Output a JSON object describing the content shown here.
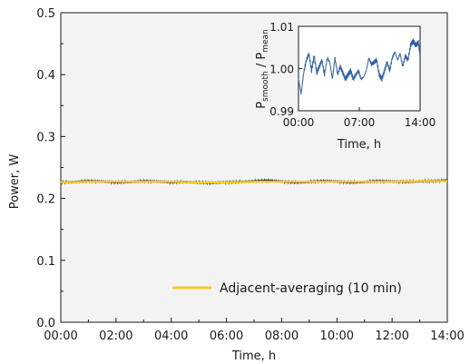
{
  "chart_data": [
    {
      "type": "line",
      "xlabel": "Time, h",
      "ylabel": "Power, W",
      "xlim": [
        0,
        14
      ],
      "ylim": [
        0,
        0.5
      ],
      "x_tick_labels": [
        "00:00",
        "02:00",
        "04:00",
        "06:00",
        "08:00",
        "10:00",
        "12:00",
        "14:00"
      ],
      "y_tick_labels": [
        "0.0",
        "0.1",
        "0.2",
        "0.3",
        "0.4",
        "0.5"
      ],
      "grid": false,
      "legend_placement": "bottom-right",
      "series": [
        {
          "name": "",
          "color": "#3b4a3a",
          "x": [
            0,
            0.5,
            1,
            1.5,
            2,
            2.5,
            3,
            3.5,
            4,
            4.5,
            5,
            5.5,
            6,
            6.5,
            7,
            7.5,
            8,
            8.5,
            9,
            9.5,
            10,
            10.5,
            11,
            11.5,
            12,
            12.5,
            13,
            13.5,
            14
          ],
          "values": [
            0.226,
            0.227,
            0.228,
            0.227,
            0.226,
            0.227,
            0.228,
            0.227,
            0.226,
            0.227,
            0.226,
            0.225,
            0.226,
            0.227,
            0.228,
            0.229,
            0.227,
            0.226,
            0.227,
            0.228,
            0.227,
            0.226,
            0.227,
            0.228,
            0.227,
            0.227,
            0.228,
            0.228,
            0.229
          ]
        },
        {
          "name": "Adjacent-averaging (10 min)",
          "color": "#f5cc1f",
          "x": [
            0,
            1,
            2,
            3,
            4,
            5,
            6,
            7,
            8,
            9,
            10,
            11,
            12,
            13,
            14
          ],
          "values": [
            0.226,
            0.227,
            0.227,
            0.227,
            0.227,
            0.226,
            0.226,
            0.227,
            0.227,
            0.227,
            0.227,
            0.227,
            0.227,
            0.228,
            0.228
          ]
        }
      ],
      "legend": [
        "Adjacent-averaging (10 min)"
      ]
    },
    {
      "type": "line",
      "xlabel": "Time, h",
      "ylabel_parts": {
        "p1": "P",
        "sub1": "smooth",
        "sep": " / P",
        "sub2": "mean"
      },
      "xlim": [
        0,
        14
      ],
      "ylim": [
        0.99,
        1.01
      ],
      "x_tick_labels": [
        "00:00",
        "07:00",
        "14:00"
      ],
      "x_tick_values": [
        0,
        7,
        14
      ],
      "y_tick_labels": [
        "0.99",
        "1.00",
        "1.01"
      ],
      "y_tick_values": [
        0.99,
        1.0,
        1.01
      ],
      "series": [
        {
          "name": "",
          "color": "#2f5f9e",
          "x": [
            0,
            0.3,
            0.6,
            0.9,
            1.2,
            1.5,
            1.8,
            2.1,
            2.4,
            2.7,
            3.0,
            3.3,
            3.6,
            3.9,
            4.2,
            4.5,
            4.8,
            5.1,
            5.4,
            5.7,
            6.0,
            6.3,
            6.6,
            6.9,
            7.2,
            7.5,
            7.8,
            8.1,
            8.4,
            8.7,
            9.0,
            9.3,
            9.6,
            9.9,
            10.2,
            10.5,
            10.8,
            11.1,
            11.4,
            11.7,
            12.0,
            12.3,
            12.6,
            12.9,
            13.2,
            13.5,
            13.8,
            14.0
          ],
          "values": [
            0.9975,
            0.994,
            0.999,
            1.002,
            1.0035,
            0.9995,
            1.003,
            0.999,
            1.0005,
            1.002,
            0.9985,
            1.0025,
            1.0015,
            0.9975,
            1.0025,
            0.9985,
            1.0005,
            0.999,
            0.9975,
            0.9985,
            0.9995,
            0.9975,
            0.9985,
            0.9995,
            0.9975,
            0.998,
            0.9995,
            1.0025,
            1.001,
            1.0015,
            1.002,
            0.9985,
            0.9975,
            0.9995,
            1.0015,
            0.9995,
            1.0025,
            1.004,
            1.002,
            1.0035,
            1.0005,
            1.003,
            1.002,
            1.0055,
            1.0065,
            1.0055,
            1.0062,
            1.003
          ]
        }
      ]
    }
  ]
}
